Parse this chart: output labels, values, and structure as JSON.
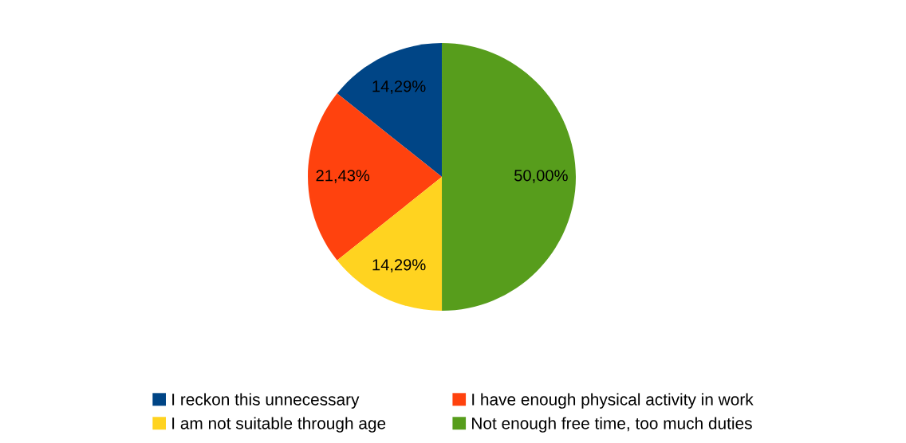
{
  "chart_data": {
    "type": "pie",
    "categories": [
      "I reckon this unnecessary",
      "I have enough physical activity in work",
      "I am not suitable through age",
      "Not enough free time, too much duties"
    ],
    "values": [
      14.29,
      21.43,
      14.29,
      50.0
    ],
    "colors": [
      "#004586",
      "#ff420e",
      "#ffd320",
      "#579d1c"
    ],
    "value_labels": [
      "14,29%",
      "21,43%",
      "14,29%",
      "50,00%"
    ],
    "legend": "bottom"
  }
}
